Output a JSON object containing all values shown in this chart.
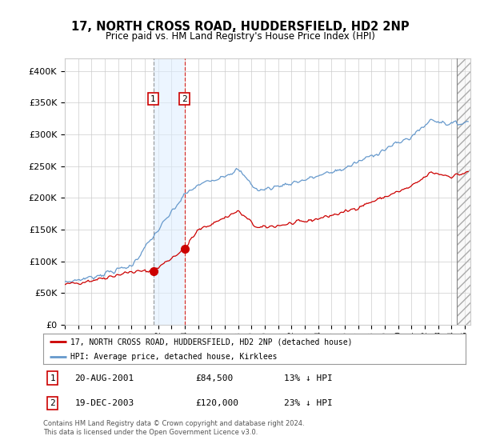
{
  "title": "17, NORTH CROSS ROAD, HUDDERSFIELD, HD2 2NP",
  "subtitle": "Price paid vs. HM Land Registry's House Price Index (HPI)",
  "legend_line1": "17, NORTH CROSS ROAD, HUDDERSFIELD, HD2 2NP (detached house)",
  "legend_line2": "HPI: Average price, detached house, Kirklees",
  "footnote": "Contains HM Land Registry data © Crown copyright and database right 2024.\nThis data is licensed under the Open Government Licence v3.0.",
  "table": [
    {
      "num": "1",
      "date": "20-AUG-2001",
      "price": "£84,500",
      "pct": "13% ↓ HPI"
    },
    {
      "num": "2",
      "date": "19-DEC-2003",
      "price": "£120,000",
      "pct": "23% ↓ HPI"
    }
  ],
  "hpi_color": "#6699cc",
  "price_color": "#cc0000",
  "sale1_date_num": 2001.63,
  "sale2_date_num": 2003.97,
  "sale1_price": 84500,
  "sale2_price": 120000,
  "ylim": [
    0,
    420000
  ],
  "xlim_start": 1995.0,
  "xlim_end": 2025.42,
  "background_color": "#ffffff",
  "grid_color": "#cccccc",
  "hatch_region_start": 2024.42,
  "hatch_region_end": 2025.42
}
